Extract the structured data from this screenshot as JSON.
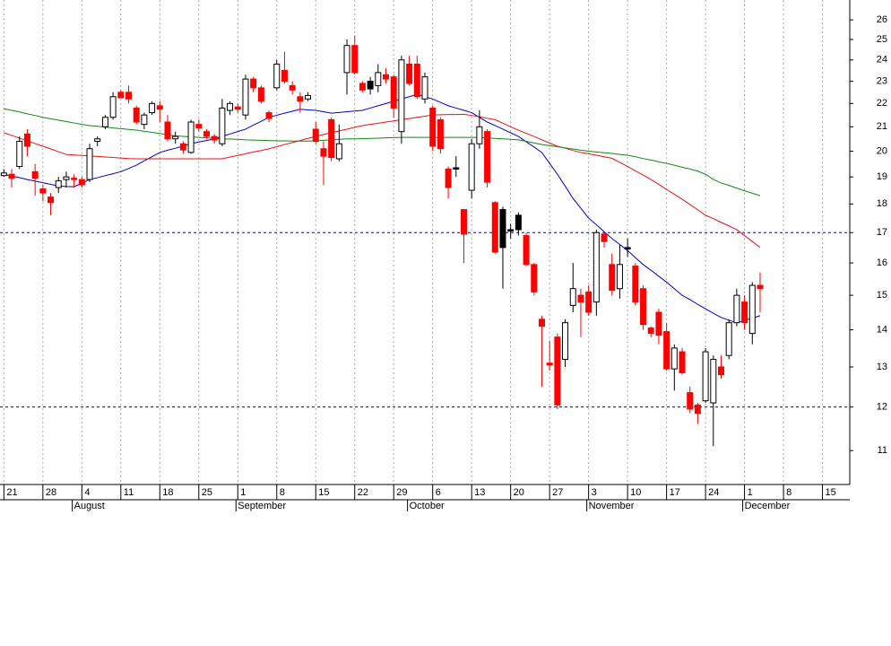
{
  "chart_data": {
    "type": "candlestick",
    "categories": [
      "21",
      null,
      null,
      null,
      null,
      "28",
      null,
      null,
      null,
      null,
      "4",
      null,
      null,
      null,
      null,
      "11",
      null,
      null,
      null,
      null,
      "18",
      null,
      null,
      null,
      null,
      "25",
      null,
      null,
      null,
      null,
      "1",
      null,
      null,
      null,
      null,
      "8",
      null,
      null,
      null,
      null,
      "15",
      null,
      null,
      null,
      null,
      "22",
      null,
      null,
      null,
      null,
      "29",
      null,
      null,
      null,
      null,
      "6",
      null,
      null,
      null,
      null,
      "13",
      null,
      null,
      null,
      null,
      "20",
      null,
      null,
      null,
      null,
      "27",
      null,
      null,
      null,
      null,
      "3",
      null,
      null,
      null,
      null,
      "10",
      null,
      null,
      null,
      null,
      "17",
      null,
      null,
      null,
      null,
      "24",
      null,
      null,
      null,
      null,
      "1",
      null,
      null,
      null,
      null,
      "8",
      null,
      null,
      null,
      null,
      "15",
      null,
      null,
      null
    ],
    "month_ticks": [
      {
        "value": 9,
        "label": "August"
      },
      {
        "value": 30,
        "label": "September"
      },
      {
        "value": 52,
        "label": "October"
      },
      {
        "value": 75,
        "label": "November"
      },
      {
        "value": 95,
        "label": "December"
      }
    ],
    "open": [
      19.05,
      19.1,
      19.4,
      20.7,
      19.2,
      18.55,
      18.25,
      18.6,
      18.9,
      18.95,
      18.9,
      18.9,
      20.4,
      21.0,
      21.4,
      22.5,
      22.5,
      21.8,
      21.1,
      21.6,
      21.9,
      21.2,
      20.5,
      20.3,
      19.95,
      21.1,
      20.8,
      20.6,
      20.3,
      21.7,
      21.85,
      21.5,
      23.1,
      22.7,
      21.6,
      22.7,
      23.5,
      22.8,
      22.3,
      22.2,
      20.9,
      20.1,
      21.3,
      19.7,
      23.4,
      24.7,
      22.9,
      23.0,
      22.8,
      23.3,
      23.2,
      20.8,
      23.8,
      23.8,
      22.2,
      21.8,
      21.3,
      19.3,
      19.35,
      17.8,
      18.5,
      20.3,
      20.8,
      18.05,
      17.8,
      17.1,
      17.6,
      16.9,
      15.95,
      14.3,
      13.1,
      13.8,
      13.2,
      14.7,
      15.0,
      15.1,
      14.8,
      16.95,
      15.95,
      15.2,
      16.5,
      15.9,
      15.2,
      14.05,
      14.5,
      13.95,
      12.95,
      13.4,
      12.35,
      12.05,
      12.15,
      12.1,
      13.0,
      13.3,
      14.2,
      14.8,
      13.9,
      15.3,
      null,
      null,
      null,
      null,
      null,
      null,
      null,
      null,
      null,
      null,
      null
    ],
    "high": [
      19.3,
      19.3,
      20.6,
      20.9,
      19.5,
      18.7,
      18.4,
      19.0,
      19.2,
      19.1,
      19.0,
      20.3,
      20.6,
      21.5,
      22.5,
      22.6,
      22.8,
      21.9,
      21.6,
      22.1,
      22.1,
      21.5,
      20.8,
      20.4,
      21.3,
      21.3,
      20.9,
      20.7,
      22.2,
      22.1,
      22.0,
      23.3,
      23.2,
      22.8,
      21.7,
      24.0,
      24.4,
      23.0,
      22.5,
      22.5,
      21.2,
      20.4,
      21.4,
      21.1,
      25.0,
      25.2,
      23.0,
      23.2,
      23.8,
      23.6,
      23.3,
      24.2,
      24.2,
      24.2,
      23.4,
      21.9,
      21.4,
      19.4,
      19.8,
      17.8,
      20.5,
      21.7,
      20.9,
      18.1,
      17.9,
      17.3,
      17.7,
      17.0,
      16.0,
      14.4,
      13.7,
      13.9,
      14.3,
      16.0,
      15.2,
      15.3,
      17.1,
      17.0,
      16.3,
      16.6,
      16.8,
      16.0,
      15.3,
      14.1,
      14.6,
      14.2,
      13.6,
      13.5,
      12.5,
      12.1,
      13.5,
      13.3,
      13.3,
      14.3,
      15.2,
      15.0,
      15.4,
      15.7,
      null,
      null,
      null,
      null,
      null,
      null,
      null,
      null,
      null,
      null,
      null
    ],
    "low": [
      19.0,
      18.6,
      19.3,
      19.8,
      18.3,
      18.1,
      17.6,
      18.4,
      18.6,
      18.6,
      18.6,
      18.8,
      20.2,
      20.9,
      21.3,
      22.3,
      22.0,
      21.1,
      20.9,
      21.5,
      21.2,
      20.4,
      20.3,
      19.9,
      19.9,
      20.8,
      20.5,
      20.3,
      20.2,
      21.5,
      21.6,
      21.3,
      22.5,
      22.0,
      21.2,
      22.6,
      22.9,
      22.4,
      21.6,
      22.1,
      20.3,
      18.7,
      19.6,
      19.6,
      22.4,
      23.3,
      22.5,
      22.4,
      22.5,
      22.9,
      21.4,
      20.3,
      22.8,
      22.2,
      22.0,
      20.0,
      19.9,
      18.2,
      19.0,
      16.0,
      18.2,
      20.1,
      18.6,
      16.3,
      15.2,
      16.8,
      16.9,
      15.9,
      15.0,
      12.5,
      12.9,
      11.95,
      13.0,
      14.5,
      13.8,
      14.4,
      14.4,
      16.5,
      15.0,
      14.9,
      16.2,
      14.7,
      14.0,
      13.8,
      13.6,
      12.9,
      12.4,
      12.8,
      11.85,
      11.6,
      12.1,
      11.1,
      12.7,
      13.2,
      14.1,
      14.0,
      13.6,
      14.5,
      null,
      null,
      null,
      null,
      null,
      null,
      null,
      null,
      null,
      null,
      null
    ],
    "close": [
      19.15,
      18.95,
      20.4,
      20.2,
      18.95,
      18.4,
      18.05,
      18.85,
      19.0,
      18.9,
      18.7,
      20.1,
      20.5,
      21.4,
      22.3,
      22.25,
      22.2,
      21.2,
      21.5,
      22.0,
      21.75,
      20.5,
      20.6,
      20.05,
      21.2,
      20.95,
      20.6,
      20.45,
      21.8,
      22.0,
      21.75,
      23.1,
      22.7,
      22.1,
      21.35,
      23.8,
      23.0,
      22.6,
      22.1,
      22.35,
      20.4,
      19.8,
      19.75,
      20.3,
      24.7,
      23.4,
      22.6,
      22.65,
      23.4,
      23.1,
      21.8,
      24.0,
      22.9,
      22.3,
      23.2,
      20.2,
      20.1,
      18.6,
      19.3,
      16.95,
      20.3,
      21.0,
      18.8,
      16.35,
      16.5,
      17.05,
      17.1,
      15.95,
      15.1,
      14.1,
      13.05,
      12.05,
      14.2,
      15.2,
      14.8,
      14.5,
      17.0,
      16.7,
      15.15,
      15.95,
      16.45,
      14.8,
      14.15,
      13.9,
      13.85,
      12.95,
      13.5,
      12.85,
      11.95,
      11.85,
      13.4,
      13.2,
      12.8,
      14.2,
      15.0,
      14.2,
      15.3,
      15.2,
      null,
      null,
      null,
      null,
      null,
      null,
      null,
      null,
      null,
      null,
      null
    ],
    "colors": {
      "up": "#ffffff",
      "down": "#ff0000",
      "down_above_prev": "#000000"
    },
    "lines": [
      {
        "color": "#0000cc",
        "values": [
          19.1,
          19.03,
          18.97,
          18.9,
          18.84,
          18.78,
          18.72,
          18.66,
          18.64,
          18.63,
          18.76,
          18.9,
          18.97,
          19.05,
          19.12,
          19.2,
          19.32,
          19.45,
          19.62,
          19.78,
          19.95,
          20.04,
          20.12,
          20.21,
          20.3,
          20.37,
          20.43,
          20.5,
          20.6,
          20.7,
          20.8,
          20.9,
          21.07,
          21.23,
          21.4,
          21.49,
          21.58,
          21.66,
          21.75,
          21.72,
          21.7,
          21.64,
          21.58,
          21.61,
          21.64,
          21.67,
          21.7,
          21.8,
          21.9,
          22.0,
          22.1,
          22.2,
          22.3,
          22.4,
          22.3,
          22.2,
          22.05,
          21.9,
          21.8,
          21.7,
          21.6,
          21.4,
          21.2,
          21.05,
          20.9,
          20.75,
          20.6,
          20.38,
          20.17,
          19.95,
          19.52,
          19.1,
          18.65,
          18.2,
          17.85,
          17.5,
          17.27,
          17.03,
          16.8,
          16.6,
          16.4,
          16.17,
          15.95,
          15.77,
          15.58,
          15.4,
          15.2,
          15.0,
          14.87,
          14.73,
          14.6,
          14.47,
          14.35,
          14.27,
          14.2,
          14.27,
          14.33,
          14.4,
          null,
          null,
          null,
          null,
          null,
          null,
          null,
          null,
          null,
          null,
          null
        ]
      },
      {
        "color": "#ee1111",
        "values": [
          20.75,
          20.64,
          20.53,
          20.42,
          20.31,
          20.2,
          20.09,
          19.98,
          19.87,
          19.85,
          19.83,
          19.81,
          19.79,
          19.77,
          19.75,
          19.73,
          19.71,
          19.7,
          19.7,
          19.7,
          19.7,
          19.7,
          19.7,
          19.7,
          19.7,
          19.7,
          19.7,
          19.7,
          19.7,
          19.77,
          19.83,
          19.9,
          19.97,
          20.03,
          20.1,
          20.18,
          20.27,
          20.35,
          20.43,
          20.52,
          20.6,
          20.68,
          20.75,
          20.83,
          20.9,
          20.98,
          21.05,
          21.1,
          21.15,
          21.2,
          21.25,
          21.3,
          21.35,
          21.4,
          21.45,
          21.5,
          21.51,
          21.52,
          21.52,
          21.53,
          21.48,
          21.42,
          21.36,
          21.3,
          21.15,
          21.0,
          20.86,
          20.73,
          20.6,
          20.46,
          20.33,
          20.2,
          20.12,
          20.03,
          19.95,
          19.9,
          19.84,
          19.78,
          19.72,
          19.56,
          19.4,
          19.23,
          19.07,
          18.9,
          18.72,
          18.53,
          18.35,
          18.17,
          17.98,
          17.79,
          17.6,
          17.48,
          17.35,
          17.23,
          17.1,
          16.9,
          16.7,
          16.5,
          null,
          null,
          null,
          null,
          null,
          null,
          null,
          null,
          null,
          null,
          null
        ]
      },
      {
        "color": "#118811",
        "values": [
          21.77,
          21.7,
          21.63,
          21.55,
          21.48,
          21.4,
          21.34,
          21.28,
          21.22,
          21.16,
          21.1,
          21.05,
          21.02,
          20.99,
          20.95,
          20.92,
          20.89,
          20.86,
          20.81,
          20.77,
          20.72,
          20.67,
          20.62,
          20.6,
          20.58,
          20.56,
          20.54,
          20.52,
          20.5,
          20.49,
          20.48,
          20.46,
          20.45,
          20.44,
          20.43,
          20.42,
          20.42,
          20.41,
          20.41,
          20.41,
          20.42,
          20.44,
          20.46,
          20.48,
          20.5,
          20.5,
          20.51,
          20.52,
          20.53,
          20.54,
          20.55,
          20.56,
          20.56,
          20.56,
          20.56,
          20.56,
          20.56,
          20.56,
          20.56,
          20.56,
          20.56,
          20.56,
          20.54,
          20.52,
          20.5,
          20.48,
          20.46,
          20.4,
          20.33,
          20.27,
          20.22,
          20.18,
          20.13,
          20.09,
          20.04,
          20.0,
          19.97,
          19.94,
          19.91,
          19.87,
          19.84,
          19.78,
          19.71,
          19.65,
          19.58,
          19.52,
          19.45,
          19.37,
          19.3,
          19.22,
          19.1,
          18.9,
          18.77,
          18.68,
          18.58,
          18.48,
          18.39,
          18.3,
          null,
          null,
          null,
          null,
          null,
          null,
          null,
          null,
          null,
          null,
          null
        ]
      }
    ],
    "hlines": [
      17,
      12
    ],
    "hline_color": "#0000cc",
    "ylim": [
      10.28,
      27.05
    ],
    "log_scale": true,
    "yticks": [
      11,
      12,
      13,
      14,
      15,
      16,
      17,
      18,
      19,
      20,
      21,
      22,
      23,
      24,
      25,
      26
    ],
    "grid": true
  }
}
